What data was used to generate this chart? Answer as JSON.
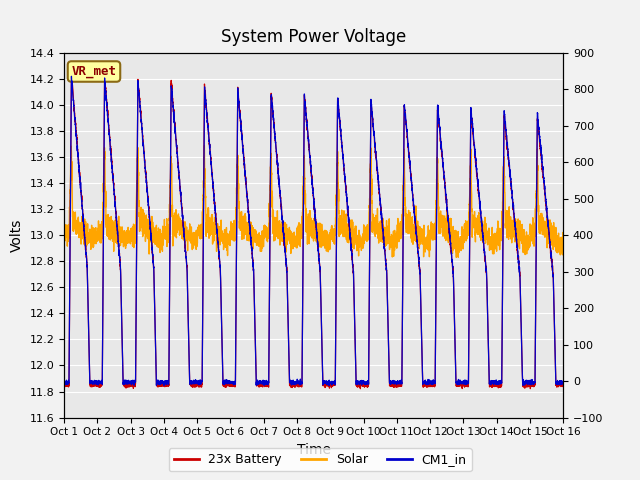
{
  "title": "System Power Voltage",
  "xlabel": "Time",
  "ylabel": "Volts",
  "ylim_left": [
    11.6,
    14.4
  ],
  "ylim_right": [
    -100,
    900
  ],
  "yticks_left": [
    11.6,
    11.8,
    12.0,
    12.2,
    12.4,
    12.6,
    12.8,
    13.0,
    13.2,
    13.4,
    13.6,
    13.8,
    14.0,
    14.2,
    14.4
  ],
  "yticks_right": [
    -100,
    0,
    100,
    200,
    300,
    400,
    500,
    600,
    700,
    800,
    900
  ],
  "xtick_labels": [
    "Oct 1",
    "Oct 2",
    "Oct 3",
    "Oct 4",
    "Oct 5",
    "Oct 6",
    "Oct 7",
    "Oct 8",
    "Oct 9",
    "Oct 10",
    "Oct 11",
    "Oct 12",
    "Oct 13",
    "Oct 14",
    "Oct 15",
    "Oct 16"
  ],
  "color_battery": "#CC0000",
  "color_solar": "#FFA500",
  "color_cm1": "#0000CC",
  "fig_facecolor": "#F2F2F2",
  "plot_facecolor": "#E8E8E8",
  "label_battery": "23x Battery",
  "label_solar": "Solar",
  "label_cm1": "CM1_in",
  "vr_met_label": "VR_met",
  "n_days": 15,
  "pts_per_day": 300
}
